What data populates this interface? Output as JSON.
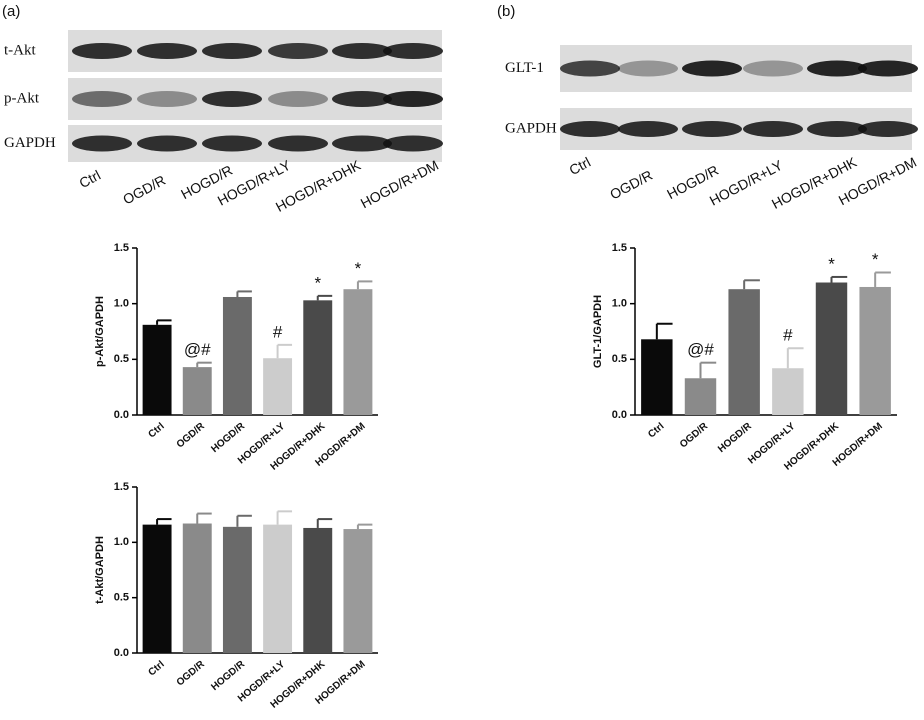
{
  "panels": [
    "(a)",
    "(b)"
  ],
  "blots": [
    {
      "rows": [
        "t-Akt",
        "p-Akt",
        "GAPDH"
      ],
      "lanes": [
        "Ctrl",
        "OGD/R",
        "HOGD/R",
        "HOGD/R+LY",
        "HOGD/R+DHK",
        "HOGD/R+DM"
      ]
    },
    {
      "rows": [
        "GLT-1",
        "GAPDH"
      ],
      "lanes": [
        "Ctrl",
        "OGD/R",
        "HOGD/R",
        "HOGD/R+LY",
        "HOGD/R+DHK",
        "HOGD/R+DM"
      ]
    }
  ],
  "chart_data": [
    {
      "type": "bar",
      "ylabel": "p-Akt/GAPDH",
      "categories": [
        "Ctrl",
        "OGD/R",
        "HOGD/R",
        "HOGD/R+LY",
        "HOGD/R+DHK",
        "HOGD/R+DM"
      ],
      "values": [
        0.81,
        0.43,
        1.06,
        0.51,
        1.03,
        1.13
      ],
      "errors": [
        0.04,
        0.04,
        0.05,
        0.12,
        0.04,
        0.07
      ],
      "annotations": [
        null,
        "@#",
        null,
        "#",
        "*",
        "*"
      ],
      "colors": [
        "#0a0a0a",
        "#8a8a8a",
        "#6a6a6a",
        "#cccccc",
        "#4a4a4a",
        "#9a9a9a"
      ],
      "ylim": [
        0,
        1.5
      ],
      "yticks": [
        {
          "value": 0,
          "label": "0.0"
        },
        0.5,
        {
          "value": 1,
          "label": "1.0"
        },
        1.5
      ]
    },
    {
      "type": "bar",
      "ylabel": "t-Akt/GAPDH",
      "categories": [
        "Ctrl",
        "OGD/R",
        "HOGD/R",
        "HOGD/R+LY",
        "HOGD/R+DHK",
        "HOGD/R+DM"
      ],
      "values": [
        1.16,
        1.17,
        1.14,
        1.16,
        1.13,
        1.12
      ],
      "errors": [
        0.05,
        0.09,
        0.1,
        0.12,
        0.08,
        0.04
      ],
      "colors": [
        "#0a0a0a",
        "#8a8a8a",
        "#6a6a6a",
        "#cccccc",
        "#4a4a4a",
        "#9a9a9a"
      ],
      "ylim": [
        0,
        1.5
      ],
      "yticks": [
        {
          "value": 0,
          "label": "0.0"
        },
        0.5,
        {
          "value": 1,
          "label": "1.0"
        },
        1.5
      ]
    },
    {
      "type": "bar",
      "ylabel": "GLT-1/GAPDH",
      "categories": [
        "Ctrl",
        "OGD/R",
        "HOGD/R",
        "HOGD/R+LY",
        "HOGD/R+DHK",
        "HOGD/R+DM"
      ],
      "values": [
        0.68,
        0.33,
        1.13,
        0.42,
        1.19,
        1.15
      ],
      "errors": [
        0.14,
        0.14,
        0.08,
        0.18,
        0.05,
        0.13
      ],
      "annotations": [
        null,
        "@#",
        null,
        "#",
        "*",
        "*"
      ],
      "colors": [
        "#0a0a0a",
        "#8a8a8a",
        "#6a6a6a",
        "#cccccc",
        "#4a4a4a",
        "#9a9a9a"
      ],
      "ylim": [
        0,
        1.5
      ],
      "yticks": [
        {
          "value": 0,
          "label": "0.0"
        },
        0.5,
        {
          "value": 1,
          "label": "1.0"
        },
        1.5
      ]
    }
  ]
}
